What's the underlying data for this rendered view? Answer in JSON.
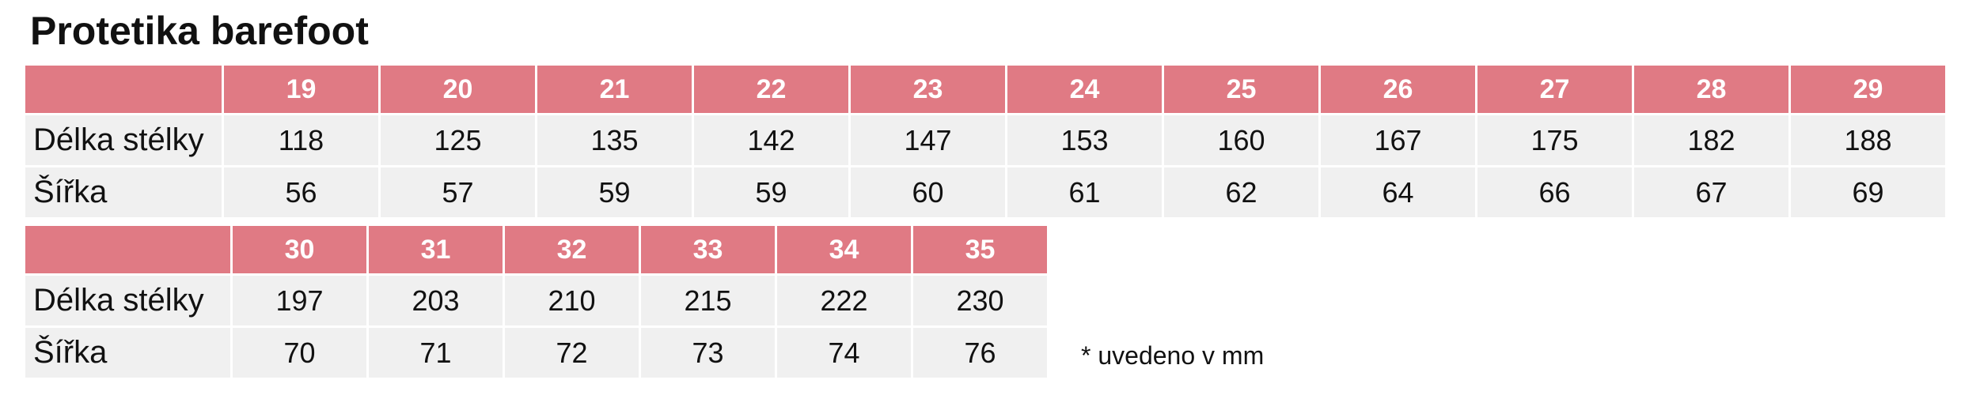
{
  "title": "Protetika barefoot",
  "tables": [
    {
      "sizes": [
        19,
        20,
        21,
        22,
        23,
        24,
        25,
        26,
        27,
        28,
        29
      ],
      "rows": [
        {
          "label": "Délka stélky",
          "values": [
            118,
            125,
            135,
            142,
            147,
            153,
            160,
            167,
            175,
            182,
            188
          ]
        },
        {
          "label": "Šířka",
          "values": [
            56,
            57,
            59,
            59,
            60,
            61,
            62,
            64,
            66,
            67,
            69
          ]
        }
      ]
    },
    {
      "sizes": [
        30,
        31,
        32,
        33,
        34,
        35
      ],
      "rows": [
        {
          "label": "Délka stélky",
          "values": [
            197,
            203,
            210,
            215,
            222,
            230
          ]
        },
        {
          "label": "Šířka",
          "values": [
            70,
            71,
            72,
            73,
            74,
            76
          ]
        }
      ]
    }
  ],
  "note": "* uvedeno v mm"
}
